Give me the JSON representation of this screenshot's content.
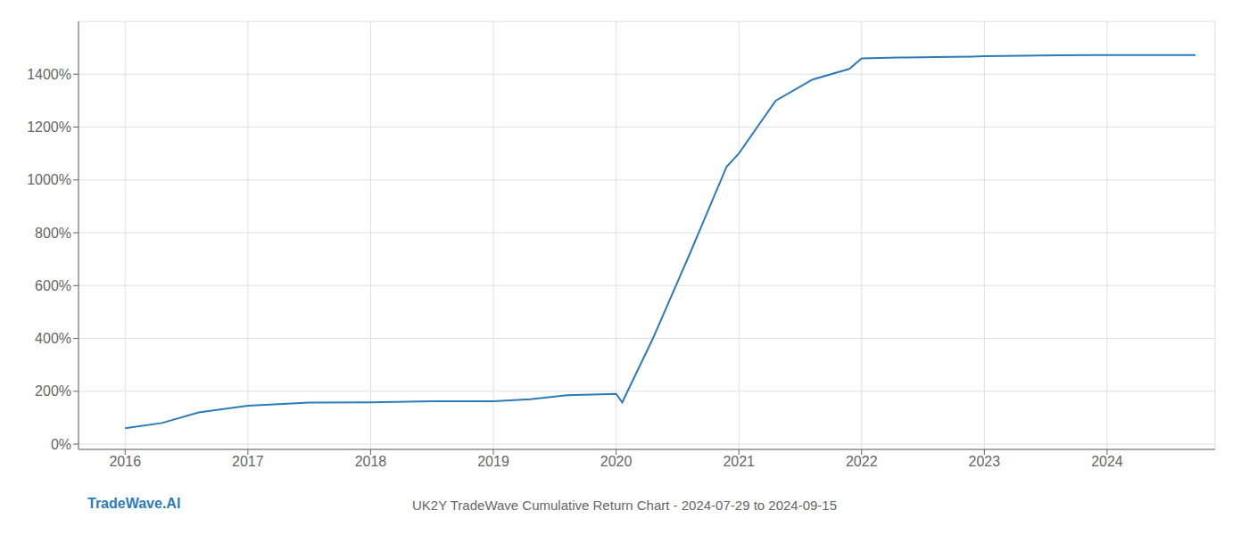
{
  "chart_data": {
    "type": "line",
    "title": "UK2Y TradeWave Cumulative Return Chart - 2024-07-29 to 2024-09-15",
    "annotations": [
      "TradeWave.AI"
    ],
    "x": [
      2016.0,
      2016.3,
      2016.6,
      2017.0,
      2017.5,
      2018.0,
      2018.5,
      2019.0,
      2019.3,
      2019.6,
      2020.0,
      2020.05,
      2020.3,
      2020.6,
      2020.9,
      2021.0,
      2021.3,
      2021.6,
      2021.9,
      2022.0,
      2022.3,
      2022.6,
      2022.9,
      2023.0,
      2023.3,
      2023.6,
      2023.9,
      2024.0,
      2024.4,
      2024.72
    ],
    "values": [
      60,
      80,
      120,
      145,
      157,
      158,
      162,
      162,
      170,
      185,
      190,
      158,
      400,
      720,
      1050,
      1100,
      1300,
      1380,
      1420,
      1460,
      1463,
      1465,
      1467,
      1468,
      1470,
      1472,
      1473,
      1473,
      1473,
      1473
    ],
    "color": "#2b7bba",
    "xlim": [
      2015.62,
      2024.88
    ],
    "ylim": [
      -20,
      1600
    ],
    "xticks": [
      2016,
      2017,
      2018,
      2019,
      2020,
      2021,
      2022,
      2023,
      2024
    ],
    "yticks": [
      {
        "value": 0,
        "label": "0%"
      },
      {
        "value": 200,
        "label": "200%"
      },
      {
        "value": 400,
        "label": "400%"
      },
      {
        "value": 600,
        "label": "600%"
      },
      {
        "value": 800,
        "label": "800%"
      },
      {
        "value": 1000,
        "label": "1000%"
      },
      {
        "value": 1200,
        "label": "1200%"
      },
      {
        "value": 1400,
        "label": "1400%"
      }
    ],
    "grid": true
  }
}
